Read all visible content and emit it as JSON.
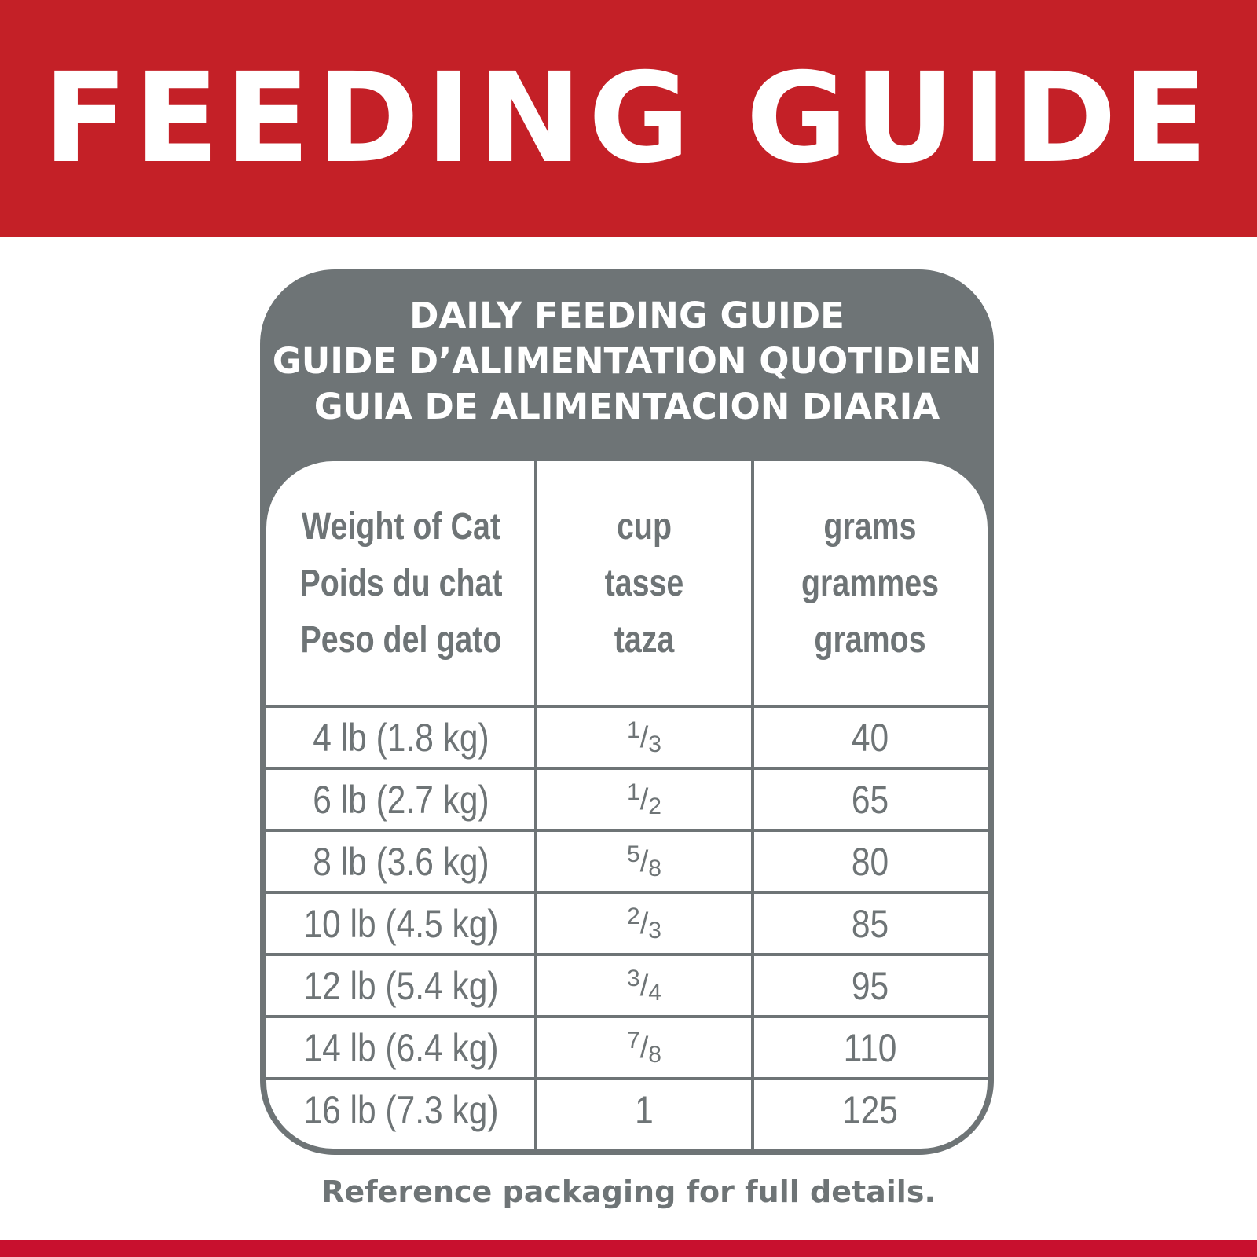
{
  "banner": {
    "title": "FEEDING GUIDE"
  },
  "card": {
    "title_lines": [
      "DAILY FEEDING GUIDE",
      "GUIDE D’ALIMENTATION QUOTIDIEN",
      "GUIA DE ALIMENTACION DIARIA"
    ]
  },
  "table": {
    "headers": [
      [
        "Weight of Cat",
        "Poids du chat",
        "Peso del gato"
      ],
      [
        "cup",
        "tasse",
        "taza"
      ],
      [
        "grams",
        "grammes",
        "gramos"
      ]
    ],
    "rows": [
      {
        "weight": "4 lb (1.8 kg)",
        "cup_num": "1",
        "cup_den": "3",
        "grams": "40"
      },
      {
        "weight": "6 lb (2.7 kg)",
        "cup_num": "1",
        "cup_den": "2",
        "grams": "65"
      },
      {
        "weight": "8 lb (3.6 kg)",
        "cup_num": "5",
        "cup_den": "8",
        "grams": "80"
      },
      {
        "weight": "10 lb (4.5 kg)",
        "cup_num": "2",
        "cup_den": "3",
        "grams": "85"
      },
      {
        "weight": "12 lb (5.4 kg)",
        "cup_num": "3",
        "cup_den": "4",
        "grams": "95"
      },
      {
        "weight": "14 lb (6.4 kg)",
        "cup_num": "7",
        "cup_den": "8",
        "grams": "110"
      },
      {
        "weight": "16 lb (7.3 kg)",
        "cup_whole": "1",
        "grams": "125"
      }
    ]
  },
  "footnote": "Reference packaging for full details.",
  "colors": {
    "brand_red": "#c42027",
    "gray": "#6e7476"
  }
}
